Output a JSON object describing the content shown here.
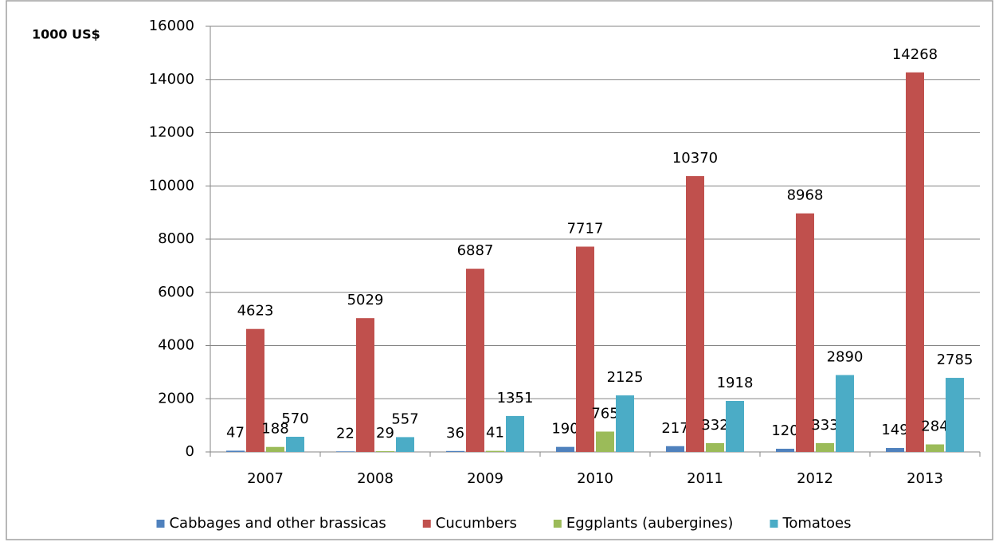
{
  "chart_data": {
    "type": "bar",
    "y_label": "1000 US$",
    "categories": [
      "2007",
      "2008",
      "2009",
      "2010",
      "2011",
      "2012",
      "2013"
    ],
    "series": [
      {
        "name": "Cabbages and other brassicas",
        "color": "#4f81bd",
        "values": [
          47,
          22,
          36,
          190,
          217,
          120,
          149
        ]
      },
      {
        "name": "Cucumbers",
        "color": "#c0504d",
        "values": [
          4623,
          5029,
          6887,
          7717,
          10370,
          8968,
          14268
        ]
      },
      {
        "name": "Eggplants (aubergines)",
        "color": "#9bbb59",
        "values": [
          188,
          29,
          41,
          765,
          332,
          333,
          284
        ]
      },
      {
        "name": "Tomatoes",
        "color": "#4bacc6",
        "values": [
          570,
          557,
          1351,
          2125,
          1918,
          2890,
          2785
        ]
      }
    ],
    "ylim": [
      0,
      16000
    ],
    "yticks": [
      0,
      2000,
      4000,
      6000,
      8000,
      10000,
      12000,
      14000,
      16000
    ],
    "grid": true,
    "legend": "bottom"
  }
}
